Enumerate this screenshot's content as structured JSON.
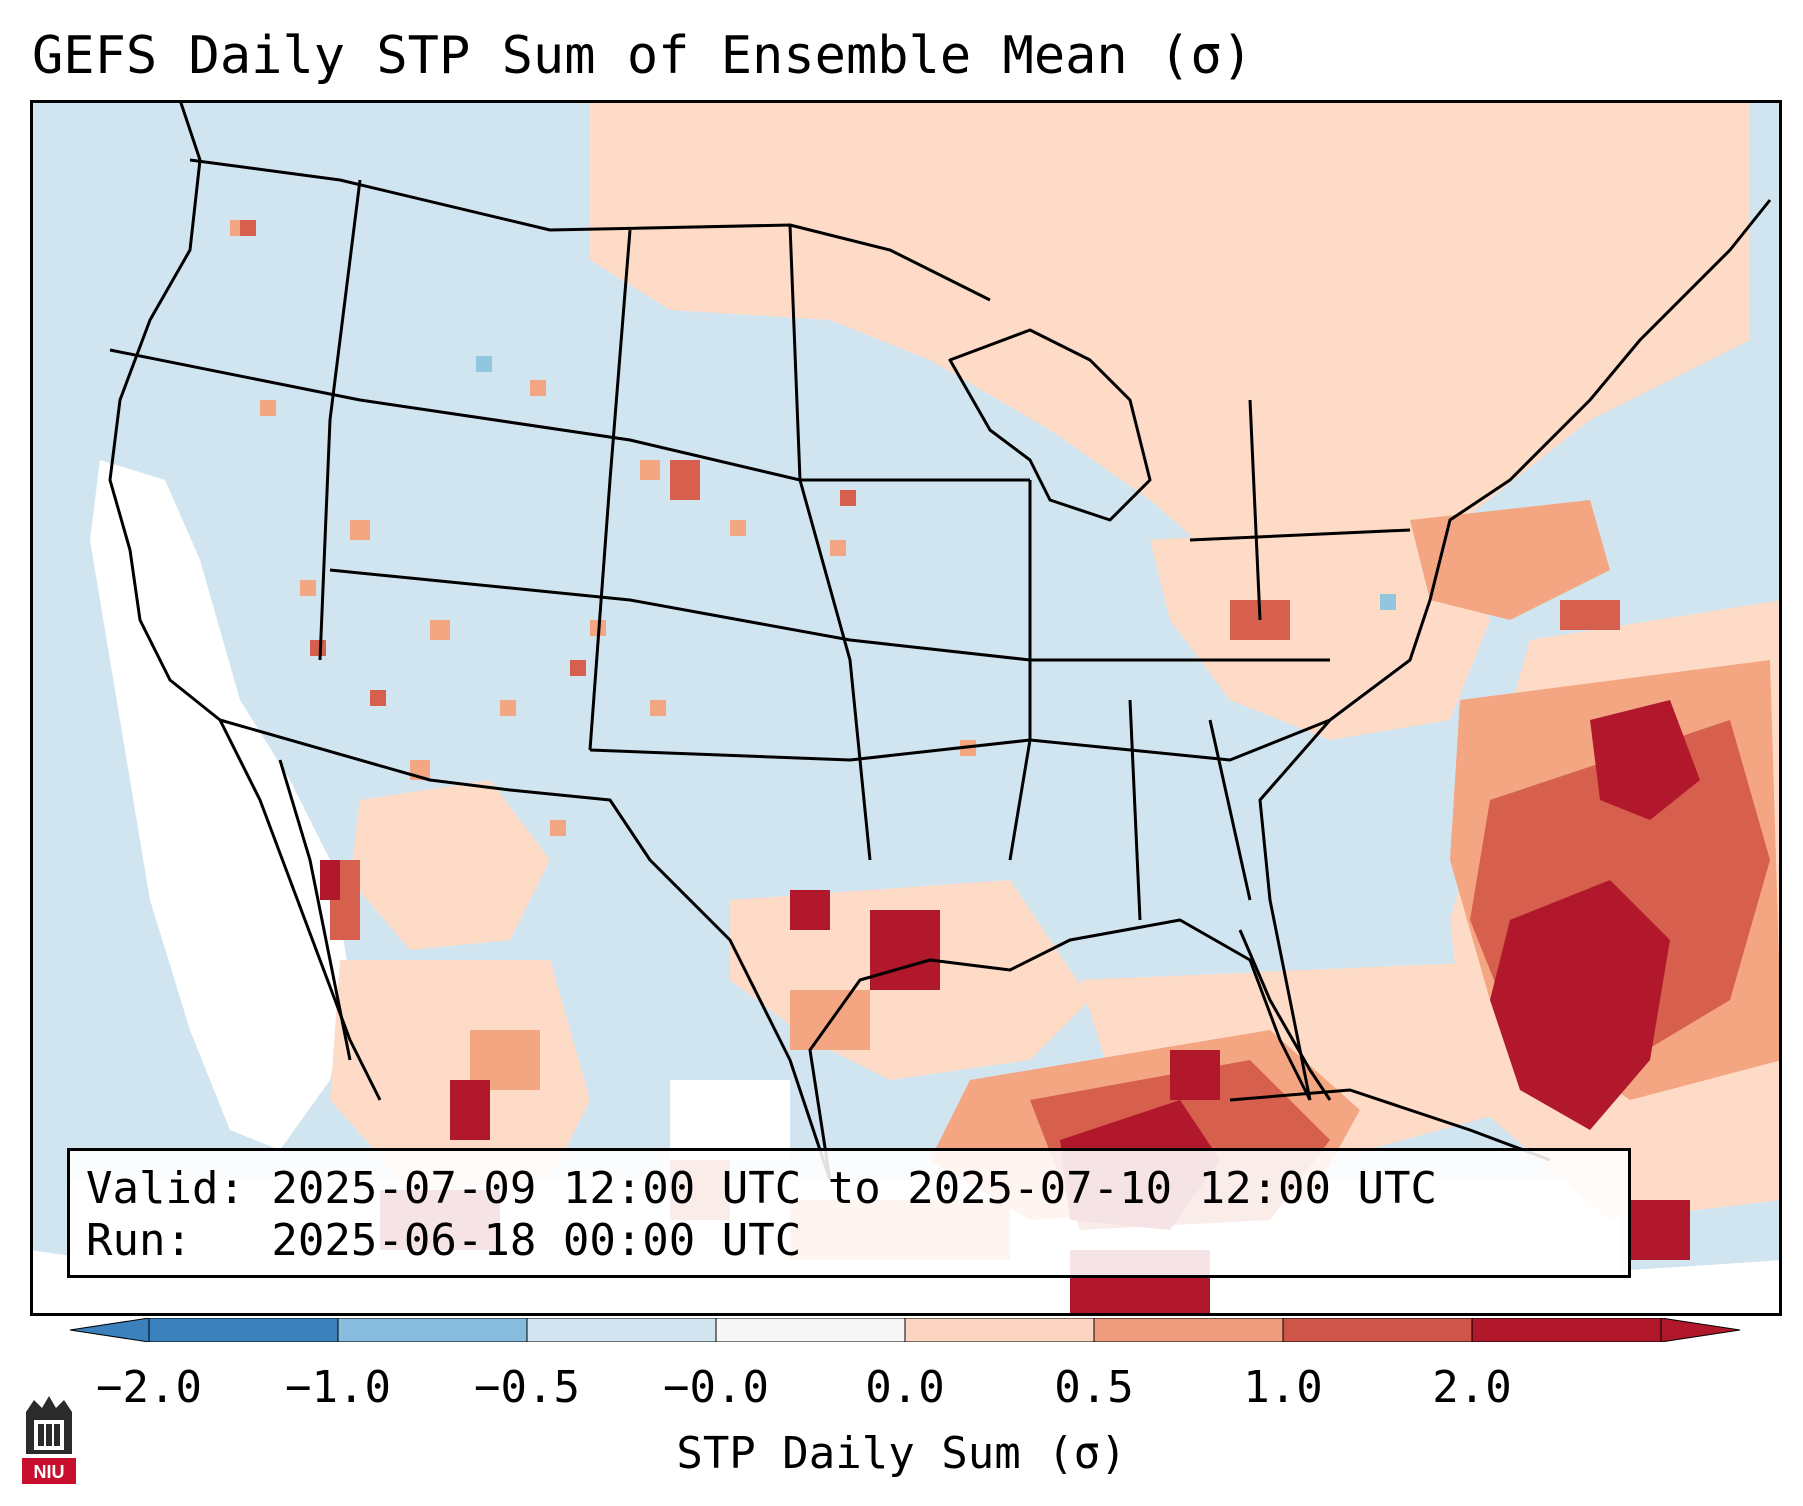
{
  "title": "GEFS Daily STP Sum of Ensemble Mean (σ)",
  "valid_line": "Valid: 2025-07-09 12:00 UTC to 2025-07-10 12:00 UTC",
  "run_line": "Run:   2025-06-18 00:00 UTC",
  "colorbar": {
    "label": "STP Daily Sum (σ)",
    "ticks": [
      "−2.0",
      "−1.0",
      "−0.5",
      "−0.0",
      "0.0",
      "0.5",
      "1.0",
      "2.0"
    ],
    "colors": [
      "#3a81bd",
      "#87bcde",
      "#d2e4f0",
      "#f7f7f7",
      "#fbd5c2",
      "#ef9c7e",
      "#cf5449",
      "#b2182b"
    ],
    "extend": "both"
  },
  "map_colors": {
    "ocean_bg": "#d1e5f0",
    "very_high": "#b2182b",
    "high": "#d6604d",
    "elevated": "#f4a582",
    "slight": "#fddbc7",
    "neutral": "#ffffff",
    "low": "#92c5de"
  },
  "logo_text": "NIU"
}
